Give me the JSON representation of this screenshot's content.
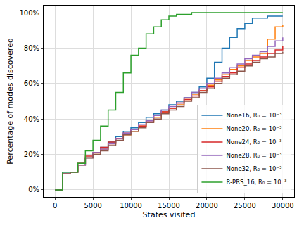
{
  "chart_data": {
    "type": "line",
    "x_label": "States visited",
    "y_label": "Percentage of modes discovered",
    "x": [
      0,
      1000,
      2000,
      3000,
      4000,
      5000,
      6000,
      7000,
      8000,
      9000,
      10000,
      11000,
      12000,
      13000,
      14000,
      15000,
      16000,
      17000,
      18000,
      19000,
      20000,
      21000,
      22000,
      23000,
      24000,
      25000,
      26000,
      27000,
      28000,
      29000,
      30000
    ],
    "series": [
      {
        "name": "None16, R₀ = 10⁻³",
        "color": "#1f77b4",
        "values": [
          0,
          10,
          10,
          14,
          18,
          21,
          24,
          27,
          30,
          33,
          35,
          38,
          41,
          43,
          45,
          48,
          50,
          52,
          55,
          58,
          63,
          72,
          80,
          86,
          91,
          94,
          97,
          97,
          98,
          98,
          98
        ]
      },
      {
        "name": "None20, R₀ = 10⁻³",
        "color": "#ff7f0e",
        "values": [
          0,
          9,
          10,
          14,
          18,
          20,
          23,
          26,
          29,
          31,
          33,
          36,
          38,
          41,
          44,
          46,
          48,
          51,
          54,
          56,
          59,
          62,
          65,
          68,
          70,
          73,
          75,
          77,
          85,
          92,
          93
        ]
      },
      {
        "name": "None24, R₀ = 10⁻³",
        "color": "#d62728",
        "values": [
          0,
          9,
          10,
          15,
          19,
          21,
          24,
          27,
          29,
          32,
          34,
          36,
          39,
          42,
          44,
          46,
          49,
          51,
          53,
          56,
          58,
          61,
          64,
          66,
          69,
          71,
          73,
          75,
          77,
          79,
          81
        ]
      },
      {
        "name": "None28, R₀ = 10⁻³",
        "color": "#9467bd",
        "values": [
          0,
          9,
          10,
          14,
          18,
          21,
          23,
          26,
          29,
          32,
          34,
          37,
          39,
          42,
          45,
          47,
          49,
          52,
          55,
          57,
          60,
          63,
          66,
          69,
          71,
          74,
          76,
          78,
          81,
          84,
          86
        ]
      },
      {
        "name": "None32, R₀ = 10⁻³",
        "color": "#8c564b",
        "values": [
          0,
          9,
          10,
          15,
          18,
          20,
          22,
          25,
          28,
          31,
          33,
          35,
          38,
          40,
          43,
          45,
          47,
          50,
          52,
          55,
          57,
          60,
          63,
          65,
          67,
          70,
          72,
          74,
          75,
          77,
          78
        ]
      },
      {
        "name": "R-PRS_16, R₀ = 10⁻³",
        "color": "#2ca02c",
        "values": [
          0,
          10,
          10,
          15,
          22,
          28,
          36,
          45,
          55,
          66,
          76,
          80,
          88,
          92,
          96,
          98,
          99,
          99,
          100,
          100,
          100,
          100,
          100,
          100,
          100,
          100,
          100,
          100,
          100,
          100,
          100
        ]
      }
    ],
    "xlim": [
      -1500,
      31500
    ],
    "xticks": [
      0,
      5000,
      10000,
      15000,
      20000,
      25000,
      30000
    ],
    "ylim": [
      -4,
      104
    ],
    "yticks": [
      {
        "value": 0,
        "label": "0%"
      },
      {
        "value": 20,
        "label": "20%"
      },
      {
        "value": 40,
        "label": "40%"
      },
      {
        "value": 60,
        "label": "60%"
      },
      {
        "value": 80,
        "label": "80%"
      },
      {
        "value": 100,
        "label": "100%"
      }
    ],
    "grid": true,
    "legend": "bottom right",
    "line_style": "step"
  }
}
